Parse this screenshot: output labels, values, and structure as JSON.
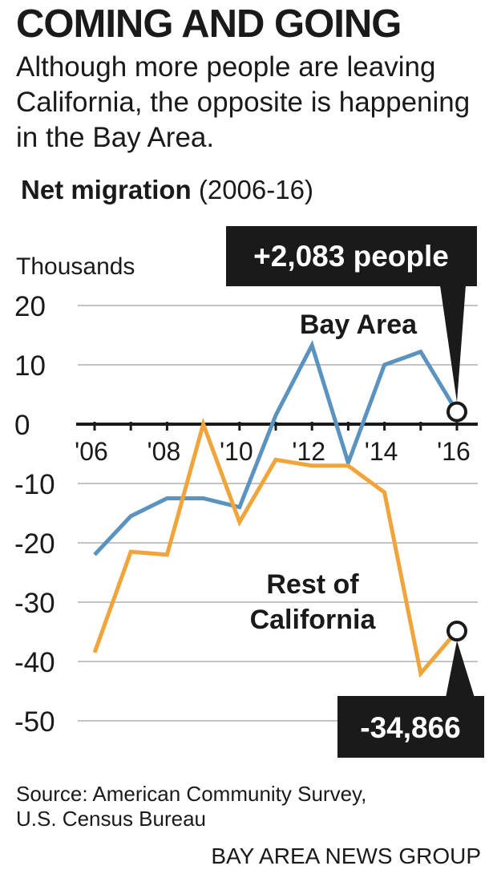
{
  "title": "COMING AND GOING",
  "subtitle": "Although more people are leaving California, the opposite is happening in the Bay Area.",
  "chart_heading": {
    "bold": "Net migration",
    "light": "(2006-16)"
  },
  "source": [
    "Source: American Community Survey,",
    "U.S. Census Bureau"
  ],
  "credit": "BAY AREA NEWS GROUP",
  "colors": {
    "bay_area": "#5b93c0",
    "rest_of_california": "#f0a43a",
    "callout_bg": "#1a1a1a",
    "grid": "#b0b0b0"
  },
  "chart_data": {
    "type": "line",
    "ylabel": "Thousands",
    "ylim": [
      -50,
      20
    ],
    "y_ticks": [
      "20",
      "10",
      "0",
      "-10",
      "-20",
      "-30",
      "-40",
      "-50"
    ],
    "x_tick_labels": [
      "'06",
      "'08",
      "'10",
      "'12",
      "'14",
      "'16"
    ],
    "x": [
      2006,
      2007,
      2008,
      2009,
      2010,
      2011,
      2012,
      2013,
      2014,
      2015,
      2016
    ],
    "series": [
      {
        "name": "Bay Area",
        "values": [
          -22,
          -15.5,
          -12.5,
          -12.5,
          -14,
          1.5,
          13.3,
          -6.5,
          10,
          12.2,
          2.083
        ]
      },
      {
        "name": "Rest of California",
        "values": [
          -38.5,
          -21.5,
          -22,
          0,
          -16.5,
          -6,
          -7,
          -7,
          -11.5,
          -42,
          -34.866
        ]
      }
    ],
    "annotations": [
      {
        "series": "Bay Area",
        "text": "+2,083 people"
      },
      {
        "series": "Rest of California",
        "text": "-34,866"
      }
    ]
  }
}
